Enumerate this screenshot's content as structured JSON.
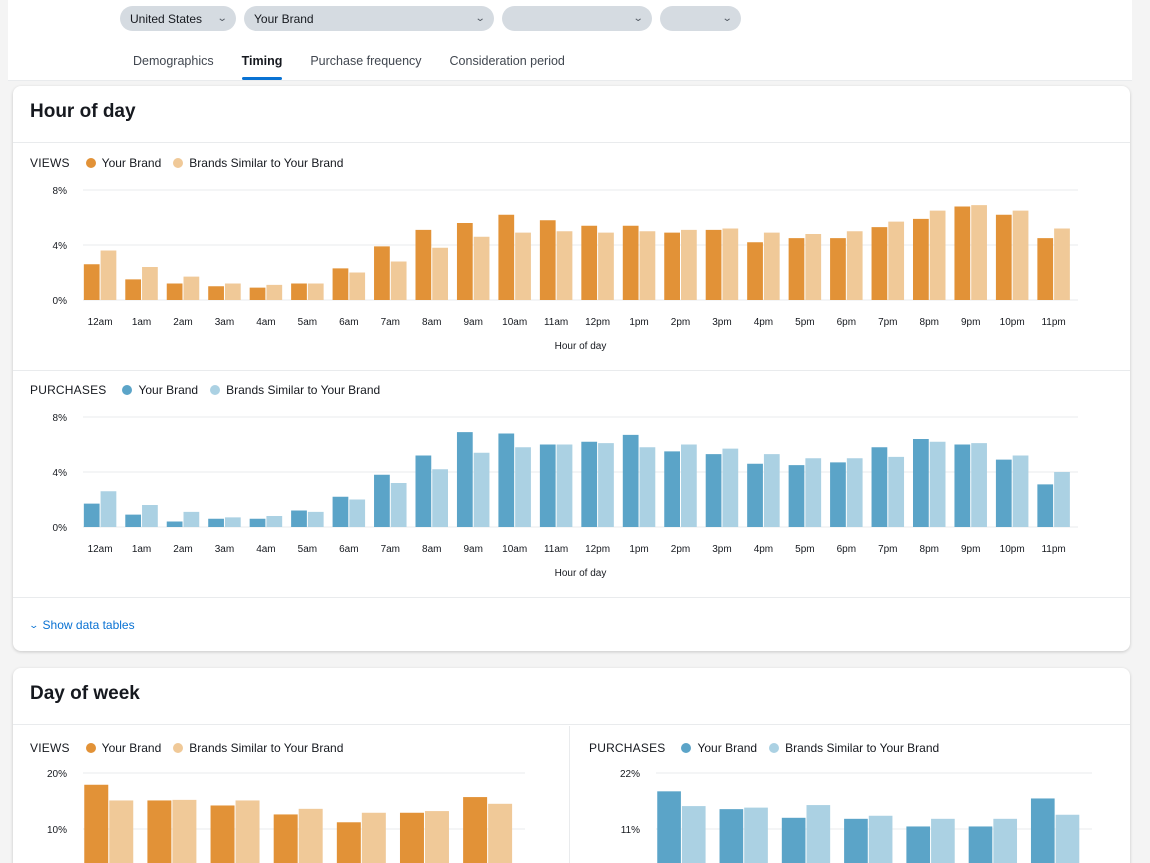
{
  "filters": {
    "country": "United States",
    "brand": "Your Brand",
    "filter3": "",
    "filter4": ""
  },
  "tabs": [
    {
      "label": "Demographics",
      "active": false
    },
    {
      "label": "Timing",
      "active": true
    },
    {
      "label": "Purchase frequency",
      "active": false
    },
    {
      "label": "Consideration period",
      "active": false
    }
  ],
  "colors": {
    "views_brand": "#e29237",
    "views_similar": "#f0c998",
    "purchases_brand": "#5ba4c8",
    "purchases_similar": "#abd1e3",
    "link": "#0972d3"
  },
  "hour_card": {
    "title": "Hour of day",
    "show_tables_label": "Show data tables"
  },
  "day_card": {
    "title": "Day of week"
  },
  "legend": {
    "views": "VIEWS",
    "purchases": "PURCHASES",
    "brand": "Your Brand",
    "similar": "Brands Similar to Your Brand"
  },
  "chart_data": [
    {
      "id": "hour_views",
      "type": "bar",
      "title": "VIEWS",
      "xlabel": "Hour of day",
      "ylabel": "",
      "ylim": [
        0,
        8
      ],
      "yticks": [
        "0%",
        "4%",
        "8%"
      ],
      "grid": true,
      "legend": "top-left",
      "categories": [
        "12am",
        "1am",
        "2am",
        "3am",
        "4am",
        "5am",
        "6am",
        "7am",
        "8am",
        "9am",
        "10am",
        "11am",
        "12pm",
        "1pm",
        "2pm",
        "3pm",
        "4pm",
        "5pm",
        "6pm",
        "7pm",
        "8pm",
        "9pm",
        "10pm",
        "11pm"
      ],
      "series": [
        {
          "name": "Your Brand",
          "values": [
            2.6,
            1.5,
            1.2,
            1.0,
            0.9,
            1.2,
            2.3,
            3.9,
            5.1,
            5.6,
            6.2,
            5.8,
            5.4,
            5.4,
            4.9,
            5.1,
            4.2,
            4.5,
            4.5,
            5.3,
            5.9,
            6.8,
            6.2,
            4.5
          ]
        },
        {
          "name": "Brands Similar to Your Brand",
          "values": [
            3.6,
            2.4,
            1.7,
            1.2,
            1.1,
            1.2,
            2.0,
            2.8,
            3.8,
            4.6,
            4.9,
            5.0,
            4.9,
            5.0,
            5.1,
            5.2,
            4.9,
            4.8,
            5.0,
            5.7,
            6.5,
            6.9,
            6.5,
            5.2
          ]
        }
      ]
    },
    {
      "id": "hour_purchases",
      "type": "bar",
      "title": "PURCHASES",
      "xlabel": "Hour of day",
      "ylabel": "",
      "ylim": [
        0,
        8
      ],
      "yticks": [
        "0%",
        "4%",
        "8%"
      ],
      "grid": true,
      "legend": "top-left",
      "categories": [
        "12am",
        "1am",
        "2am",
        "3am",
        "4am",
        "5am",
        "6am",
        "7am",
        "8am",
        "9am",
        "10am",
        "11am",
        "12pm",
        "1pm",
        "2pm",
        "3pm",
        "4pm",
        "5pm",
        "6pm",
        "7pm",
        "8pm",
        "9pm",
        "10pm",
        "11pm"
      ],
      "series": [
        {
          "name": "Your Brand",
          "values": [
            1.7,
            0.9,
            0.4,
            0.6,
            0.6,
            1.2,
            2.2,
            3.8,
            5.2,
            6.9,
            6.8,
            6.0,
            6.2,
            6.7,
            5.5,
            5.3,
            4.6,
            4.5,
            4.7,
            5.8,
            6.4,
            6.0,
            4.9,
            3.1
          ]
        },
        {
          "name": "Brands Similar to Your Brand",
          "values": [
            2.6,
            1.6,
            1.1,
            0.7,
            0.8,
            1.1,
            2.0,
            3.2,
            4.2,
            5.4,
            5.8,
            6.0,
            6.1,
            5.8,
            6.0,
            5.7,
            5.3,
            5.0,
            5.0,
            5.1,
            6.2,
            6.1,
            5.2,
            4.0
          ]
        }
      ]
    },
    {
      "id": "day_views",
      "type": "bar",
      "title": "VIEWS",
      "xlabel": "",
      "ylabel": "",
      "ylim": [
        0,
        20
      ],
      "yticks": [
        "10%",
        "20%"
      ],
      "grid": true,
      "legend": "top-left",
      "categories": [
        "",
        "",
        "",
        "",
        "",
        "",
        ""
      ],
      "series": [
        {
          "name": "Your Brand",
          "values": [
            17.9,
            15.1,
            14.2,
            12.6,
            11.2,
            12.9,
            15.7
          ]
        },
        {
          "name": "Brands Similar to Your Brand",
          "values": [
            15.1,
            15.2,
            15.1,
            13.6,
            12.9,
            13.2,
            14.5
          ]
        }
      ]
    },
    {
      "id": "day_purchases",
      "type": "bar",
      "title": "PURCHASES",
      "xlabel": "",
      "ylabel": "",
      "ylim": [
        0,
        22
      ],
      "yticks": [
        "11%",
        "22%"
      ],
      "grid": true,
      "legend": "top-left",
      "categories": [
        "",
        "",
        "",
        "",
        "",
        "",
        ""
      ],
      "series": [
        {
          "name": "Your Brand",
          "values": [
            18.4,
            14.9,
            13.2,
            13.0,
            11.5,
            11.5,
            17.0
          ]
        },
        {
          "name": "Brands Similar to Your Brand",
          "values": [
            15.5,
            15.2,
            15.7,
            13.6,
            13.0,
            13.0,
            13.8
          ]
        }
      ]
    }
  ]
}
